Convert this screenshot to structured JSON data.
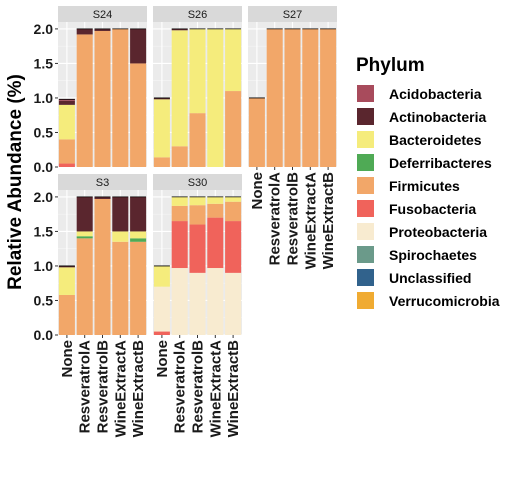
{
  "chart_data": {
    "type": "bar",
    "stacked": true,
    "faceted": true,
    "ylabel": "Relative Abundance (%)",
    "ylim": [
      0,
      2.1
    ],
    "yticks": [
      "0.0",
      "0.5",
      "1.0",
      "1.5",
      "2.0"
    ],
    "ytick_values": [
      0,
      0.5,
      1.0,
      1.5,
      2.0
    ],
    "categories": [
      "None",
      "ResveratrolA",
      "ResveratrolB",
      "WineExtractA",
      "WineExtractB"
    ],
    "legend": {
      "title": "Phylum",
      "placement": "right",
      "entries": [
        {
          "name": "Acidobacteria",
          "color": "#A84B5C"
        },
        {
          "name": "Actinobacteria",
          "color": "#5A262E"
        },
        {
          "name": "Bacteroidetes",
          "color": "#F5EC7C"
        },
        {
          "name": "Deferribacteres",
          "color": "#4FAA55"
        },
        {
          "name": "Firmicutes",
          "color": "#F2A769"
        },
        {
          "name": "Fusobacteria",
          "color": "#F0635B"
        },
        {
          "name": "Proteobacteria",
          "color": "#F8EBD0"
        },
        {
          "name": "Spirochaetes",
          "color": "#6B9A8A"
        },
        {
          "name": "Unclassified",
          "color": "#31628C"
        },
        {
          "name": "Verrucomicrobia",
          "color": "#F0AB32"
        }
      ]
    },
    "panels": [
      {
        "strip": "S24",
        "bars": [
          [
            [
              "Fusobacteria",
              0.05
            ],
            [
              "Firmicutes",
              0.35
            ],
            [
              "Bacteroidetes",
              0.5
            ],
            [
              "Actinobacteria",
              0.06
            ],
            [
              "Acidobacteria",
              0.02
            ]
          ],
          [
            [
              "Firmicutes",
              1.92
            ],
            [
              "Actinobacteria",
              0.08
            ]
          ],
          [
            [
              "Firmicutes",
              1.97
            ],
            [
              "Actinobacteria",
              0.03
            ]
          ],
          [
            [
              "Firmicutes",
              2.0
            ]
          ],
          [
            [
              "Firmicutes",
              1.5
            ],
            [
              "Actinobacteria",
              0.5
            ]
          ]
        ]
      },
      {
        "strip": "S26",
        "bars": [
          [
            [
              "Firmicutes",
              0.14
            ],
            [
              "Bacteroidetes",
              0.84
            ],
            [
              "Actinobacteria",
              0.02
            ]
          ],
          [
            [
              "Firmicutes",
              0.3
            ],
            [
              "Bacteroidetes",
              1.68
            ],
            [
              "Actinobacteria",
              0.02
            ]
          ],
          [
            [
              "Firmicutes",
              0.78
            ],
            [
              "Bacteroidetes",
              1.22
            ]
          ],
          [
            [
              "Bacteroidetes",
              2.0
            ]
          ],
          [
            [
              "Firmicutes",
              1.1
            ],
            [
              "Bacteroidetes",
              0.9
            ]
          ]
        ]
      },
      {
        "strip": "S27",
        "bars": [
          [
            [
              "Firmicutes",
              1.0
            ]
          ],
          [
            [
              "Firmicutes",
              2.0
            ]
          ],
          [
            [
              "Firmicutes",
              2.0
            ]
          ],
          [
            [
              "Firmicutes",
              2.0
            ]
          ],
          [
            [
              "Firmicutes",
              2.0
            ]
          ]
        ]
      },
      {
        "strip": "S3",
        "bars": [
          [
            [
              "Firmicutes",
              0.58
            ],
            [
              "Bacteroidetes",
              0.4
            ],
            [
              "Actinobacteria",
              0.02
            ]
          ],
          [
            [
              "Firmicutes",
              1.4
            ],
            [
              "Deferribacteres",
              0.03
            ],
            [
              "Bacteroidetes",
              0.07
            ],
            [
              "Actinobacteria",
              0.5
            ]
          ],
          [
            [
              "Firmicutes",
              1.97
            ],
            [
              "Actinobacteria",
              0.03
            ]
          ],
          [
            [
              "Firmicutes",
              1.35
            ],
            [
              "Bacteroidetes",
              0.15
            ],
            [
              "Actinobacteria",
              0.5
            ]
          ],
          [
            [
              "Firmicutes",
              1.35
            ],
            [
              "Deferribacteres",
              0.05
            ],
            [
              "Bacteroidetes",
              0.1
            ],
            [
              "Actinobacteria",
              0.5
            ]
          ]
        ]
      },
      {
        "strip": "S30",
        "bars": [
          [
            [
              "Fusobacteria",
              0.05
            ],
            [
              "Proteobacteria",
              0.65
            ],
            [
              "Bacteroidetes",
              0.3
            ]
          ],
          [
            [
              "Proteobacteria",
              0.97
            ],
            [
              "Fusobacteria",
              0.68
            ],
            [
              "Firmicutes",
              0.22
            ],
            [
              "Bacteroidetes",
              0.13
            ]
          ],
          [
            [
              "Proteobacteria",
              0.9
            ],
            [
              "Fusobacteria",
              0.7
            ],
            [
              "Firmicutes",
              0.28
            ],
            [
              "Bacteroidetes",
              0.12
            ]
          ],
          [
            [
              "Proteobacteria",
              0.97
            ],
            [
              "Fusobacteria",
              0.73
            ],
            [
              "Firmicutes",
              0.2
            ],
            [
              "Bacteroidetes",
              0.1
            ]
          ],
          [
            [
              "Proteobacteria",
              0.9
            ],
            [
              "Fusobacteria",
              0.75
            ],
            [
              "Firmicutes",
              0.28
            ],
            [
              "Bacteroidetes",
              0.07
            ]
          ]
        ]
      }
    ]
  }
}
